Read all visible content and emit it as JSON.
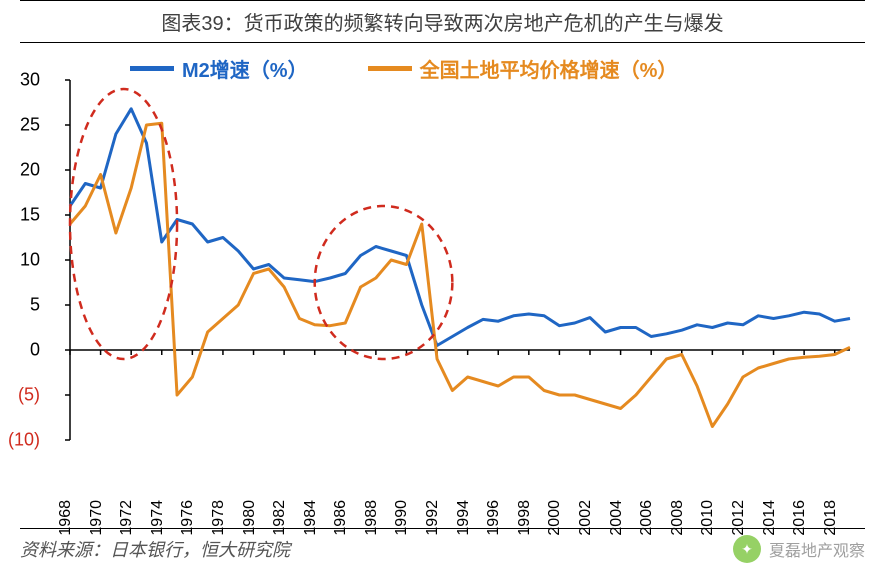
{
  "title": "图表39：货币政策的频繁转向导致两次房地产危机的产生与爆发",
  "source": "资料来源：日本银行，恒大研究院",
  "watermark": "夏磊地产观察",
  "chart": {
    "type": "line",
    "background_color": "#ffffff",
    "axis_color": "#000000",
    "negative_label_color": "#d02b1e",
    "line_width": 3,
    "ylim": [
      -10,
      30
    ],
    "ytick_step": 5,
    "yticks": [
      -10,
      -5,
      0,
      5,
      10,
      15,
      20,
      25,
      30
    ],
    "ytick_labels": [
      "(10)",
      "(5)",
      "0",
      "5",
      "10",
      "15",
      "20",
      "25",
      "30"
    ],
    "xlim": [
      1968,
      2019
    ],
    "xticks": [
      1968,
      1970,
      1972,
      1974,
      1976,
      1978,
      1980,
      1982,
      1984,
      1986,
      1988,
      1990,
      1992,
      1994,
      1996,
      1998,
      2000,
      2002,
      2004,
      2006,
      2008,
      2010,
      2012,
      2014,
      2016,
      2018
    ],
    "series": [
      {
        "name": "M2增速（%）",
        "color": "#1f66c4",
        "x": [
          1968,
          1969,
          1970,
          1971,
          1972,
          1973,
          1974,
          1975,
          1976,
          1977,
          1978,
          1979,
          1980,
          1981,
          1982,
          1983,
          1984,
          1985,
          1986,
          1987,
          1988,
          1989,
          1990,
          1991,
          1992,
          1993,
          1994,
          1995,
          1996,
          1997,
          1998,
          1999,
          2000,
          2001,
          2002,
          2003,
          2004,
          2005,
          2006,
          2007,
          2008,
          2009,
          2010,
          2011,
          2012,
          2013,
          2014,
          2015,
          2016,
          2017,
          2018,
          2019
        ],
        "y": [
          16,
          18.5,
          18,
          24,
          26.8,
          23,
          12,
          14.5,
          14,
          12,
          12.5,
          11,
          9,
          9.5,
          8,
          7.8,
          7.6,
          8,
          8.5,
          10.5,
          11.5,
          11,
          10.5,
          5,
          0.5,
          1.5,
          2.5,
          3.4,
          3.2,
          3.8,
          4,
          3.8,
          2.7,
          3,
          3.6,
          2,
          2.5,
          2.5,
          1.5,
          1.8,
          2.2,
          2.8,
          2.5,
          3,
          2.8,
          3.8,
          3.5,
          3.8,
          4.2,
          4,
          3.2,
          3.5
        ]
      },
      {
        "name": "全国土地平均价格增速（%）",
        "color": "#e58a20",
        "x": [
          1968,
          1969,
          1970,
          1971,
          1972,
          1973,
          1974,
          1975,
          1976,
          1977,
          1978,
          1979,
          1980,
          1981,
          1982,
          1983,
          1984,
          1985,
          1986,
          1987,
          1988,
          1989,
          1990,
          1991,
          1992,
          1993,
          1994,
          1995,
          1996,
          1997,
          1998,
          1999,
          2000,
          2001,
          2002,
          2003,
          2004,
          2005,
          2006,
          2007,
          2008,
          2009,
          2010,
          2011,
          2012,
          2013,
          2014,
          2015,
          2016,
          2017,
          2018,
          2019
        ],
        "y": [
          14,
          16,
          19.5,
          13,
          18,
          25,
          25.2,
          -5,
          -3,
          2,
          3.5,
          5,
          8.5,
          9,
          7,
          3.5,
          2.8,
          2.7,
          3,
          7,
          8,
          10,
          9.5,
          14,
          -1,
          -4.5,
          -3,
          -3.5,
          -4,
          -3,
          -3,
          -4.5,
          -5,
          -5,
          -5.5,
          -6,
          -6.5,
          -5,
          -3,
          -1,
          -0.5,
          -4,
          -8.5,
          -6,
          -3,
          -2,
          -1.5,
          -1,
          -0.8,
          -0.7,
          -0.5,
          0.3
        ]
      }
    ],
    "highlight_ellipses": [
      {
        "cx_year": 1971.5,
        "cy_val": 14,
        "rx_years": 3.5,
        "ry_val": 15,
        "color": "#d02b1e",
        "dash": "8 6",
        "stroke_width": 2.5
      },
      {
        "cx_year": 1988.5,
        "cy_val": 7.5,
        "rx_years": 4.5,
        "ry_val": 8.5,
        "color": "#d02b1e",
        "dash": "8 6",
        "stroke_width": 2.5
      }
    ],
    "label_fontsize": 18,
    "legend_fontsize": 20,
    "legend_position": "top-inside"
  }
}
